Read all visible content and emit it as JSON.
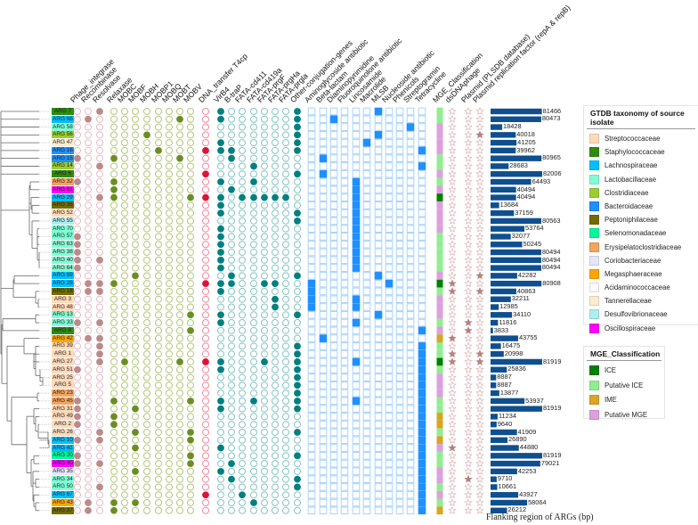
{
  "columns": [
    "Phage_integrase",
    "Recombinase",
    "Resolvase",
    "Relaxase",
    "MOBC",
    "MOBF",
    "MOBH",
    "MOBP1",
    "MOBQ",
    "MOBT",
    "MOBV",
    "DNA_transfer T4cp",
    "VirB4",
    "B-traP",
    "FATA-cd411",
    "FATA-cd419a",
    "FATA-prgF",
    "FATA-prgHa",
    "FATA-prgla",
    "Other-conjugation-genes",
    "Aminoglycoside antibiotic",
    "Beta-lactam",
    "Diaminopyrimidine",
    "Fluoroquinolone antibiotic",
    "Lincosamide",
    "Macrolide",
    "MLSB",
    "Nucleoside antibiotic",
    "Phenicols",
    "Streptogramin",
    "Tetracycline"
  ],
  "extra_columns": [
    "MGE_Classification",
    "dsDNAphage",
    "Plasmid (PLSDB database)",
    "Plasmid replication factor (repA & repB)"
  ],
  "group_colors": {
    "recombinase": {
      "fill": "#bc8a8a",
      "stroke": "#e6bcc6"
    },
    "mob": {
      "fill": "#6b8e23",
      "stroke": "#b3c87a"
    },
    "t4cp": {
      "fill": "#dc143c",
      "stroke": "#f08a9e"
    },
    "conjugation": {
      "fill": "#008080",
      "stroke": "#86c4c4"
    },
    "resistance": {
      "fill": "#1e90ff",
      "stroke": "#a9d2fb"
    },
    "star_on": "#b88080",
    "star_off": "#dcb0b0",
    "bar": "#0f4f8f"
  },
  "taxonomy_legend": {
    "title": "GTDB taxonomy of source isolate",
    "items": [
      {
        "label": "Streptococcaceae",
        "color": "#ffdab9"
      },
      {
        "label": "Staphylococcaceae",
        "color": "#2e8b0e"
      },
      {
        "label": "Lachnospiraceae",
        "color": "#00bfff"
      },
      {
        "label": "Lactobacillaceae",
        "color": "#7fffd4"
      },
      {
        "label": "Clostridiaceae",
        "color": "#9acd32"
      },
      {
        "label": "Bacteroidaceae",
        "color": "#1e90ff"
      },
      {
        "label": "Peptoniphilaceae",
        "color": "#736b00"
      },
      {
        "label": "Selenomonadaceae",
        "color": "#00fa9a"
      },
      {
        "label": "Erysipelatoclostridiaceae",
        "color": "#f4a460"
      },
      {
        "label": "Coriobacteriaceae",
        "color": "#e6e6fa"
      },
      {
        "label": "Megasphaeraceae",
        "color": "#ffa500"
      },
      {
        "label": "Acidaminococcaceae",
        "color": "#fff8f8"
      },
      {
        "label": "Tannerellaceae",
        "color": "#ffebcd"
      },
      {
        "label": "Desulfovibrionaceae",
        "color": "#afeeee"
      },
      {
        "label": "Oscillospiraceae",
        "color": "#ff00ff"
      }
    ]
  },
  "mge_legend": {
    "title": "MGE_Classification",
    "items": [
      {
        "label": "ICE",
        "color": "#008000"
      },
      {
        "label": "Putative ICE",
        "color": "#90ee90"
      },
      {
        "label": "IME",
        "color": "#daa520"
      },
      {
        "label": "Putative MGE",
        "color": "#dda0dd"
      }
    ]
  },
  "rows": [
    {
      "label": "ARG 7",
      "tax": 1,
      "on": [
        2,
        12,
        19,
        26
      ],
      "mge": 1,
      "stars": [
        0,
        0,
        0
      ],
      "flank": 81466
    },
    {
      "label": "ARG 66",
      "tax": 2,
      "on": [
        1,
        9,
        12,
        19,
        22
      ],
      "mge": 1,
      "stars": [
        0,
        0,
        0
      ],
      "flank": 80473
    },
    {
      "label": "ARG 58",
      "tax": 3,
      "on": [
        19,
        29
      ],
      "mge": 3,
      "stars": [
        0,
        0,
        0
      ],
      "flank": 18428
    },
    {
      "label": "ARG 56",
      "tax": 4,
      "on": [
        6,
        19,
        26
      ],
      "mge": 3,
      "stars": [
        0,
        0,
        1
      ],
      "flank": 40018
    },
    {
      "label": "ARG 47",
      "tax": 12,
      "on": [
        12,
        19,
        25
      ],
      "mge": 3,
      "stars": [
        0,
        0,
        0
      ],
      "flank": 41205
    },
    {
      "label": "ARG 16",
      "tax": 5,
      "on": [
        7,
        11,
        12,
        13,
        19,
        30
      ],
      "mge": 3,
      "stars": [
        0,
        0,
        0
      ],
      "flank": 39962
    },
    {
      "label": "ARG 15",
      "tax": 5,
      "on": [
        0,
        3,
        9,
        13,
        21
      ],
      "mge": 1,
      "stars": [
        0,
        0,
        0
      ],
      "flank": 80965
    },
    {
      "label": "ARG 14",
      "tax": 4,
      "on": [
        2,
        15,
        30
      ],
      "mge": 1,
      "stars": [
        0,
        0,
        0
      ],
      "flank": 28683
    },
    {
      "label": "ARG 6",
      "tax": 1,
      "on": [
        11,
        19,
        21
      ],
      "mge": 3,
      "stars": [
        0,
        0,
        0
      ],
      "flank": 82006
    },
    {
      "label": "ARG 32",
      "tax": 8,
      "on": [
        0,
        3,
        12,
        15,
        24
      ],
      "mge": 1,
      "stars": [
        0,
        0,
        0
      ],
      "flank": 64493
    },
    {
      "label": "ARG 61",
      "tax": 14,
      "on": [
        3,
        13,
        24
      ],
      "mge": 3,
      "stars": [
        0,
        0,
        0
      ],
      "flank": 40494
    },
    {
      "label": "ARG 29",
      "tax": 2,
      "on": [
        2,
        3,
        10,
        11,
        12,
        14,
        15,
        16,
        17,
        18,
        24
      ],
      "mge": 0,
      "stars": [
        0,
        0,
        0
      ],
      "flank": 40494
    },
    {
      "label": "ARG 36",
      "tax": 6,
      "on": [
        12,
        24
      ],
      "mge": 3,
      "stars": [
        0,
        0,
        0
      ],
      "flank": 13684
    },
    {
      "label": "ARG 52",
      "tax": 0,
      "on": [
        12,
        19,
        24
      ],
      "mge": 3,
      "stars": [
        0,
        0,
        0
      ],
      "flank": 37159
    },
    {
      "label": "ARG 55",
      "tax": 13,
      "on": [
        19,
        24
      ],
      "mge": 3,
      "stars": [
        0,
        0,
        0
      ],
      "flank": 80563
    },
    {
      "label": "ARG 70",
      "tax": 3,
      "on": [
        12,
        24
      ],
      "mge": 3,
      "stars": [
        0,
        0,
        0
      ],
      "flank": 53764
    },
    {
      "label": "ARG 57",
      "tax": 3,
      "on": [
        0,
        12,
        24
      ],
      "mge": 1,
      "stars": [
        0,
        0,
        0
      ],
      "flank": 32077
    },
    {
      "label": "ARG 63",
      "tax": 3,
      "on": [
        0,
        12,
        24
      ],
      "mge": 1,
      "stars": [
        0,
        0,
        0
      ],
      "flank": 50245
    },
    {
      "label": "ARG 38",
      "tax": 3,
      "on": [
        0,
        12,
        24
      ],
      "mge": 1,
      "stars": [
        0,
        0,
        0
      ],
      "flank": 80494
    },
    {
      "label": "ARG 40",
      "tax": 3,
      "on": [
        0,
        2,
        12,
        24
      ],
      "mge": 1,
      "stars": [
        0,
        0,
        0
      ],
      "flank": 80494
    },
    {
      "label": "ARG 64",
      "tax": 3,
      "on": [
        0,
        12,
        24
      ],
      "mge": 1,
      "stars": [
        0,
        0,
        0
      ],
      "flank": 80494
    },
    {
      "label": "ARG 69",
      "tax": 2,
      "on": [
        5,
        13,
        19,
        26
      ],
      "mge": 3,
      "stars": [
        0,
        0,
        1
      ],
      "flank": 42282
    },
    {
      "label": "ARG 28",
      "tax": 2,
      "on": [
        1,
        2,
        3,
        11,
        12,
        13,
        16,
        17,
        20,
        27
      ],
      "mge": 0,
      "stars": [
        1,
        0,
        0
      ],
      "flank": 80908
    },
    {
      "label": "ARG 18",
      "tax": 6,
      "on": [
        1,
        2,
        12,
        20
      ],
      "mge": 1,
      "stars": [
        1,
        0,
        1
      ],
      "flank": 40863
    },
    {
      "label": "ARG 3",
      "tax": 0,
      "on": [
        17,
        20,
        24
      ],
      "mge": 3,
      "stars": [
        0,
        0,
        0
      ],
      "flank": 32211
    },
    {
      "label": "ARG 48",
      "tax": 0,
      "on": [
        17,
        20,
        24
      ],
      "mge": 3,
      "stars": [
        0,
        0,
        0
      ],
      "flank": 12985
    },
    {
      "label": "ARG 13",
      "tax": 3,
      "on": [
        10,
        12,
        19,
        26
      ],
      "mge": 3,
      "stars": [
        0,
        0,
        0
      ],
      "flank": 34110
    },
    {
      "label": "ARG 33",
      "tax": 3,
      "on": [
        0,
        2,
        12,
        24
      ],
      "mge": 1,
      "stars": [
        0,
        1,
        0
      ],
      "flank": 11816
    },
    {
      "label": "ARG 8",
      "tax": 1,
      "on": [
        10,
        30
      ],
      "mge": 3,
      "stars": [
        0,
        1,
        0
      ],
      "flank": 3833
    },
    {
      "label": "ARG 42",
      "tax": 10,
      "on": [
        1,
        2,
        21
      ],
      "mge": 2,
      "stars": [
        1,
        0,
        0
      ],
      "flank": 43755
    },
    {
      "label": "ARG 39",
      "tax": 0,
      "on": [
        2,
        19,
        30
      ],
      "mge": 1,
      "stars": [
        0,
        0,
        0
      ],
      "flank": 16475
    },
    {
      "label": "ARG 1",
      "tax": 0,
      "on": [
        2,
        19,
        30
      ],
      "mge": 1,
      "stars": [
        1,
        0,
        1
      ],
      "flank": 20998
    },
    {
      "label": "ARG 27",
      "tax": 0,
      "on": [
        2,
        4,
        9,
        11,
        12,
        16,
        19,
        24,
        30
      ],
      "mge": 0,
      "stars": [
        1,
        0,
        1
      ],
      "flank": 81919
    },
    {
      "label": "ARG 51",
      "tax": 0,
      "on": [
        0,
        12,
        19,
        30
      ],
      "mge": 1,
      "stars": [
        0,
        0,
        0
      ],
      "flank": 25836
    },
    {
      "label": "ARG 25",
      "tax": 0,
      "on": [
        19,
        30
      ],
      "mge": 3,
      "stars": [
        0,
        0,
        0
      ],
      "flank": 8887
    },
    {
      "label": "ARG 5",
      "tax": 0,
      "on": [
        19,
        30
      ],
      "mge": 3,
      "stars": [
        0,
        0,
        0
      ],
      "flank": 8887
    },
    {
      "label": "ARG 23",
      "tax": 8,
      "on": [
        19,
        30
      ],
      "mge": 3,
      "stars": [
        0,
        0,
        0
      ],
      "flank": 13877
    },
    {
      "label": "ARG 45",
      "tax": 8,
      "on": [
        0,
        3,
        10,
        12,
        15,
        19,
        24,
        30
      ],
      "mge": 1,
      "stars": [
        0,
        0,
        0
      ],
      "flank": 53937
    },
    {
      "label": "ARG 31",
      "tax": 0,
      "on": [
        0,
        5,
        12,
        19,
        30
      ],
      "mge": 1,
      "stars": [
        0,
        0,
        0
      ],
      "flank": 81919
    },
    {
      "label": "ARG 49",
      "tax": 0,
      "on": [
        0,
        3,
        30
      ],
      "mge": 2,
      "stars": [
        0,
        0,
        0
      ],
      "flank": 11234
    },
    {
      "label": "ARG 2",
      "tax": 0,
      "on": [
        0,
        3,
        30
      ],
      "mge": 2,
      "stars": [
        0,
        0,
        0
      ],
      "flank": 9640
    },
    {
      "label": "ARG 26",
      "tax": 0,
      "on": [
        2,
        5,
        10,
        19,
        30
      ],
      "mge": 1,
      "stars": [
        0,
        0,
        0
      ],
      "flank": 41909
    },
    {
      "label": "ARG 10",
      "tax": 2,
      "on": [
        0,
        2,
        10,
        30
      ],
      "mge": 2,
      "stars": [
        0,
        0,
        0
      ],
      "flank": 26890
    },
    {
      "label": "ARG 41",
      "tax": 2,
      "on": [
        5,
        12,
        30
      ],
      "mge": 3,
      "stars": [
        1,
        0,
        0
      ],
      "flank": 44880
    },
    {
      "label": "ARG 20",
      "tax": 7,
      "on": [
        0,
        10,
        19,
        30
      ],
      "mge": 1,
      "stars": [
        0,
        0,
        0
      ],
      "flank": 81919
    },
    {
      "label": "ARG 60",
      "tax": 14,
      "on": [
        0,
        2,
        10,
        13,
        30
      ],
      "mge": 1,
      "stars": [
        0,
        0,
        0
      ],
      "flank": 79021
    },
    {
      "label": "ARG 35",
      "tax": 9,
      "on": [
        5,
        12,
        30
      ],
      "mge": 3,
      "stars": [
        0,
        0,
        0
      ],
      "flank": 42253
    },
    {
      "label": "ARG 34",
      "tax": 3,
      "on": [
        13,
        19,
        30
      ],
      "mge": 3,
      "stars": [
        0,
        1,
        0
      ],
      "flank": 9710
    },
    {
      "label": "ARG 50",
      "tax": 3,
      "on": [
        2,
        19,
        30
      ],
      "mge": 1,
      "stars": [
        0,
        0,
        0
      ],
      "flank": 10661
    },
    {
      "label": "ARG 67",
      "tax": 2,
      "on": [
        11,
        14,
        30
      ],
      "mge": 3,
      "stars": [
        0,
        0,
        0
      ],
      "flank": 43927
    },
    {
      "label": "ARG 43",
      "tax": 10,
      "on": [
        1,
        3,
        5,
        15,
        30
      ],
      "mge": 1,
      "stars": [
        0,
        0,
        0
      ],
      "flank": 58064
    },
    {
      "label": "ARG 37",
      "tax": 6,
      "on": [
        1,
        3,
        30
      ],
      "mge": 2,
      "stars": [
        0,
        0,
        0
      ],
      "flank": 26212
    }
  ],
  "flank_axis_label": "Flanking region of ARGs (bp)"
}
